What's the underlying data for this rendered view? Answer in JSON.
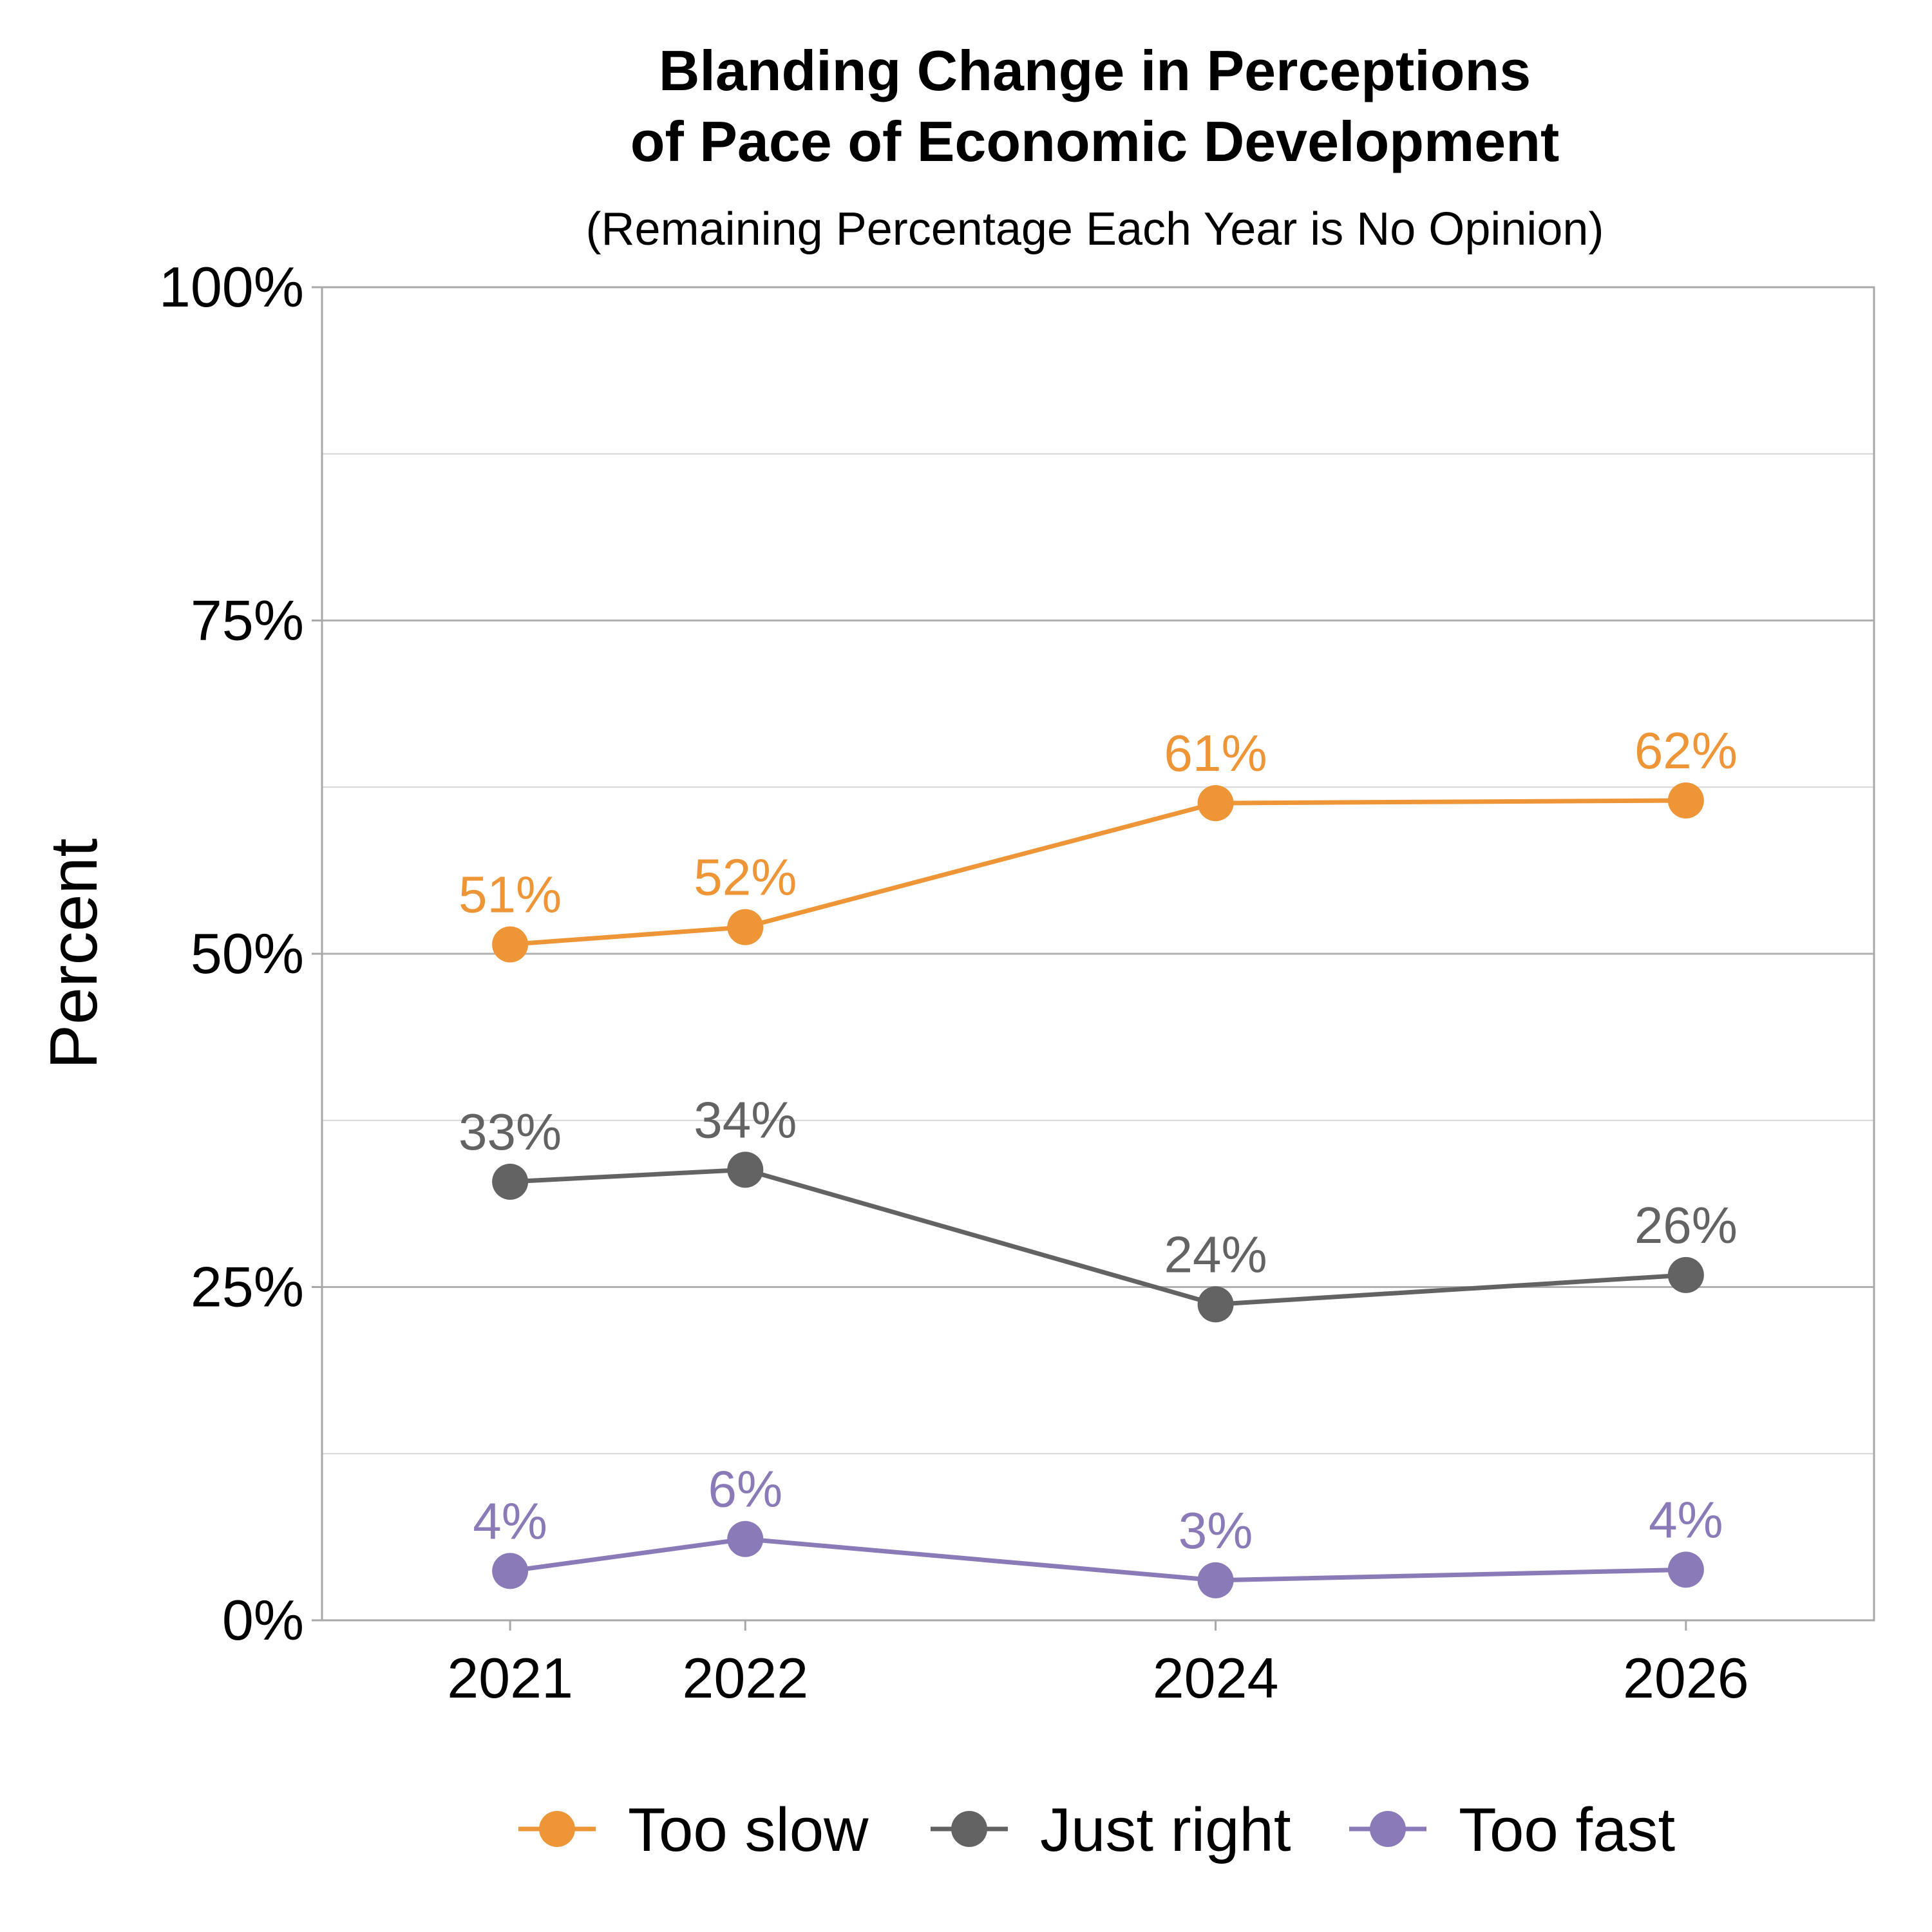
{
  "chart_data": {
    "type": "line",
    "title_lines": [
      "Blanding Change in Perceptions",
      "of Pace of Economic Development"
    ],
    "subtitle": "(Remaining Percentage Each Year is No Opinion)",
    "ylabel": "Percent",
    "xlabel": "",
    "x": [
      2021,
      2022,
      2024,
      2026
    ],
    "x_tick_labels": [
      "2021",
      "2022",
      "2024",
      "2026"
    ],
    "xlim": [
      2020.2,
      2026.8
    ],
    "ylim": [
      0,
      100
    ],
    "y_ticks": [
      0,
      25,
      50,
      75,
      100
    ],
    "y_tick_labels": [
      "0%",
      "25%",
      "50%",
      "75%",
      "100%"
    ],
    "grid": true,
    "legend_position": "bottom",
    "series": [
      {
        "name": "Too slow",
        "color": "#EE9537",
        "values": [
          50.7,
          52.0,
          61.3,
          61.5
        ],
        "labels": [
          "51%",
          "52%",
          "61%",
          "62%"
        ]
      },
      {
        "name": "Just right",
        "color": "#636363",
        "values": [
          32.9,
          33.8,
          23.7,
          25.9
        ],
        "labels": [
          "33%",
          "34%",
          "24%",
          "26%"
        ]
      },
      {
        "name": "Too fast",
        "color": "#8A7BB8",
        "values": [
          3.7,
          6.1,
          3.0,
          3.8
        ],
        "labels": [
          "4%",
          "6%",
          "3%",
          "4%"
        ]
      }
    ]
  }
}
